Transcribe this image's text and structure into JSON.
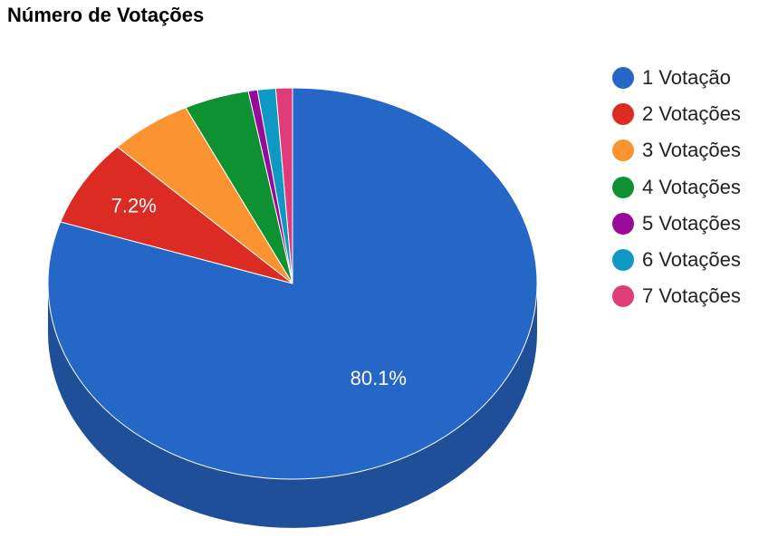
{
  "chart_data": {
    "type": "pie",
    "title": "Número de Votações",
    "three_d": true,
    "legend_position": "right",
    "slices": [
      {
        "label": "1 Votação",
        "value": 80.1,
        "color": "#2567C6",
        "side_color": "#1F4F98",
        "data_label": "80.1%"
      },
      {
        "label": "2 Votações",
        "value": 7.2,
        "color": "#DB2B23",
        "side_color": "#A8221C",
        "data_label": "7.2%"
      },
      {
        "label": "3 Votações",
        "value": 5.5,
        "color": "#FB9430",
        "side_color": "#C37326",
        "data_label": ""
      },
      {
        "label": "4 Votações",
        "value": 4.3,
        "color": "#0E9231",
        "side_color": "#0A6F25",
        "data_label": ""
      },
      {
        "label": "5 Votações",
        "value": 0.6,
        "color": "#9A0A99",
        "side_color": "#760876",
        "data_label": ""
      },
      {
        "label": "6 Votações",
        "value": 1.2,
        "color": "#0E99C5",
        "side_color": "#0B7596",
        "data_label": ""
      },
      {
        "label": "7 Votações",
        "value": 1.1,
        "color": "#DE3C78",
        "side_color": "#AA2E5C",
        "data_label": ""
      }
    ]
  }
}
